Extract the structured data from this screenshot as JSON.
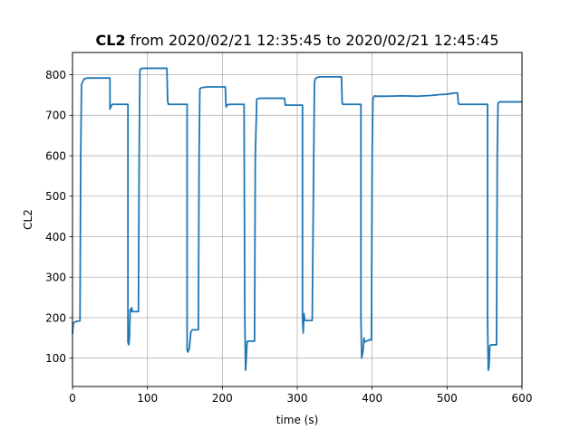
{
  "chart_data": {
    "type": "line",
    "title_bold": "CL2",
    "title_rest": " from 2020/02/21 12:35:45 to 2020/02/21 12:45:45",
    "xlabel": "time (s)",
    "ylabel": "CL2",
    "xlim": [
      0,
      600
    ],
    "ylim": [
      30,
      855
    ],
    "xticks": [
      0,
      100,
      200,
      300,
      400,
      500,
      600
    ],
    "yticks": [
      100,
      200,
      300,
      400,
      500,
      600,
      700,
      800
    ],
    "grid": true,
    "line_color": "#1f77b4",
    "series": [
      {
        "x": [
          0,
          1,
          2,
          4,
          6,
          10,
          11,
          12,
          14,
          16,
          20,
          30,
          40,
          50,
          50,
          51,
          53,
          60,
          70,
          74,
          74,
          75,
          76,
          77,
          78,
          79,
          80,
          85,
          88,
          89,
          90,
          91,
          95,
          100,
          110,
          120,
          126,
          127,
          128,
          140,
          153,
          153,
          154,
          156,
          158,
          160,
          168,
          169,
          170,
          172,
          180,
          200,
          204,
          205,
          206,
          210,
          220,
          229,
          230,
          231,
          232,
          233,
          234,
          240,
          243,
          244,
          246,
          250,
          260,
          270,
          283,
          284,
          290,
          300,
          307,
          307,
          308,
          309,
          310,
          311,
          314,
          320,
          322,
          323,
          324,
          326,
          330,
          340,
          350,
          359,
          360,
          361,
          370,
          385,
          385,
          386,
          388,
          389,
          390,
          396,
          399,
          400,
          401,
          402,
          403,
          405,
          420,
          440,
          460,
          480,
          490,
          500,
          510,
          514,
          515,
          516,
          530,
          554,
          554,
          555,
          556,
          557,
          558,
          559,
          560,
          566,
          567,
          568,
          570,
          580,
          590,
          600
        ],
        "y": [
          160,
          185,
          188,
          190,
          191,
          192,
          600,
          775,
          785,
          790,
          792,
          792,
          792,
          792,
          715,
          720,
          727,
          727,
          727,
          727,
          140,
          133,
          150,
          220,
          215,
          225,
          215,
          215,
          215,
          600,
          810,
          815,
          816,
          816,
          816,
          816,
          816,
          735,
          727,
          727,
          727,
          120,
          115,
          125,
          165,
          170,
          170,
          600,
          765,
          768,
          770,
          770,
          770,
          720,
          725,
          727,
          727,
          727,
          200,
          70,
          100,
          140,
          142,
          142,
          142,
          600,
          740,
          742,
          742,
          742,
          742,
          725,
          725,
          725,
          725,
          200,
          162,
          210,
          195,
          193,
          193,
          193,
          600,
          780,
          790,
          793,
          795,
          795,
          795,
          795,
          730,
          727,
          727,
          727,
          200,
          100,
          120,
          150,
          140,
          145,
          145,
          600,
          740,
          745,
          748,
          747,
          747,
          748,
          747,
          749,
          751,
          752,
          755,
          755,
          730,
          727,
          727,
          727,
          200,
          70,
          80,
          130,
          132,
          133,
          133,
          133,
          600,
          730,
          733,
          733,
          733,
          733
        ]
      }
    ]
  }
}
